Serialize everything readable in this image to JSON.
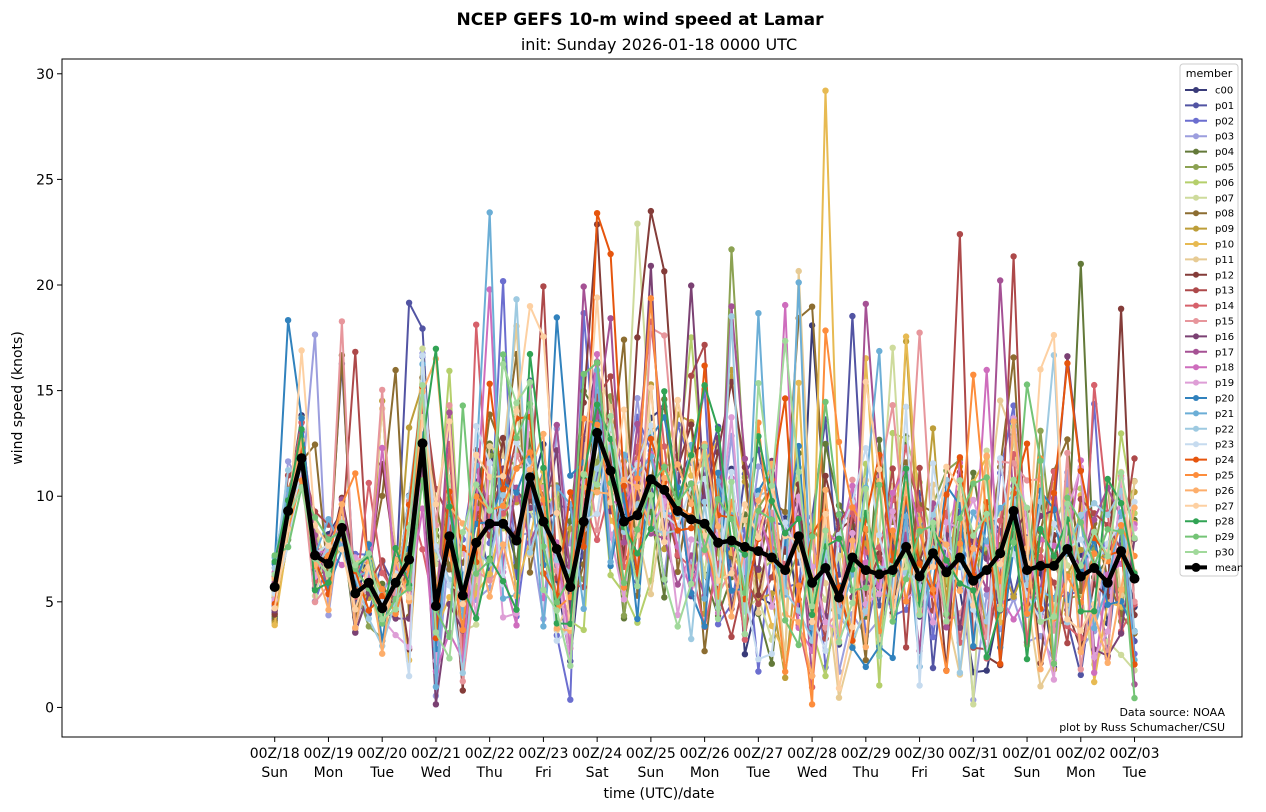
{
  "chart_data": {
    "type": "line",
    "title": "NCEP GEFS 10-m wind speed at Lamar",
    "subtitle": "init: Sunday 2026-01-18 0000 UTC",
    "xlabel": "time (UTC)/date",
    "ylabel": "wind speed (knots)",
    "ylim": [
      -1.4,
      30.7
    ],
    "xlim_hours": [
      -95,
      432
    ],
    "y_ticks": [
      "0",
      "5",
      "10",
      "15",
      "20",
      "25",
      "30"
    ],
    "x_ticks": [
      {
        "line1": "00Z/18",
        "line2": "Sun"
      },
      {
        "line1": "00Z/19",
        "line2": "Mon"
      },
      {
        "line1": "00Z/20",
        "line2": "Tue"
      },
      {
        "line1": "00Z/21",
        "line2": "Wed"
      },
      {
        "line1": "00Z/22",
        "line2": "Thu"
      },
      {
        "line1": "00Z/23",
        "line2": "Fri"
      },
      {
        "line1": "00Z/24",
        "line2": "Sat"
      },
      {
        "line1": "00Z/25",
        "line2": "Sun"
      },
      {
        "line1": "00Z/26",
        "line2": "Mon"
      },
      {
        "line1": "00Z/27",
        "line2": "Tue"
      },
      {
        "line1": "00Z/28",
        "line2": "Wed"
      },
      {
        "line1": "00Z/29",
        "line2": "Thu"
      },
      {
        "line1": "00Z/30",
        "line2": "Fri"
      },
      {
        "line1": "00Z/31",
        "line2": "Sat"
      },
      {
        "line1": "00Z/01",
        "line2": "Sun"
      },
      {
        "line1": "00Z/02",
        "line2": "Mon"
      },
      {
        "line1": "00Z/03",
        "line2": "Tue"
      }
    ],
    "legend_title": "member",
    "legend_position": "upper-right",
    "time_step_hours": 6,
    "member_series": [
      {
        "name": "c00",
        "color": "#393b79",
        "start": 4.5
      },
      {
        "name": "p01",
        "color": "#5254a3",
        "start": 4.2
      },
      {
        "name": "p02",
        "color": "#6b6ecf",
        "start": 4.8
      },
      {
        "name": "p03",
        "color": "#9c9ede",
        "start": 5.0
      },
      {
        "name": "p04",
        "color": "#637939",
        "start": 4.3
      },
      {
        "name": "p05",
        "color": "#8ca252",
        "start": 5.2
      },
      {
        "name": "p06",
        "color": "#b5cf6b",
        "start": 5.5
      },
      {
        "name": "p07",
        "color": "#cedb9c",
        "start": 6.0
      },
      {
        "name": "p08",
        "color": "#8c6d31",
        "start": 4.1
      },
      {
        "name": "p09",
        "color": "#bd9e39",
        "start": 4.0
      },
      {
        "name": "p10",
        "color": "#e7ba52",
        "start": 3.9
      },
      {
        "name": "p11",
        "color": "#e7cb94",
        "start": 5.3
      },
      {
        "name": "p12",
        "color": "#843c39",
        "start": 4.4
      },
      {
        "name": "p13",
        "color": "#ad494a",
        "start": 5.6
      },
      {
        "name": "p14",
        "color": "#d6616b",
        "start": 6.2
      },
      {
        "name": "p15",
        "color": "#e7969c",
        "start": 5.7
      },
      {
        "name": "p16",
        "color": "#7b4173",
        "start": 4.6
      },
      {
        "name": "p17",
        "color": "#a55194",
        "start": 5.9
      },
      {
        "name": "p18",
        "color": "#ce6dbd",
        "start": 6.4
      },
      {
        "name": "p19",
        "color": "#de9ed6",
        "start": 5.1
      },
      {
        "name": "p20",
        "color": "#3182bd",
        "start": 6.8
      },
      {
        "name": "p21",
        "color": "#6baed6",
        "start": 7.1
      },
      {
        "name": "p22",
        "color": "#9ecae1",
        "start": 6.6
      },
      {
        "name": "p23",
        "color": "#c6dbef",
        "start": 5.4
      },
      {
        "name": "p24",
        "color": "#e6550d",
        "start": 4.9
      },
      {
        "name": "p25",
        "color": "#fd8d3c",
        "start": 5.8
      },
      {
        "name": "p26",
        "color": "#fdae6b",
        "start": 6.1
      },
      {
        "name": "p27",
        "color": "#fdd0a2",
        "start": 4.7
      },
      {
        "name": "p28",
        "color": "#31a354",
        "start": 6.9
      },
      {
        "name": "p29",
        "color": "#74c476",
        "start": 7.2
      },
      {
        "name": "p30",
        "color": "#a1d99b",
        "start": 6.3
      }
    ],
    "mean": {
      "name": "mean",
      "color": "#000000",
      "values": [
        5.7,
        9.3,
        11.8,
        7.2,
        6.8,
        8.5,
        5.4,
        5.9,
        4.7,
        5.9,
        7.0,
        12.5,
        4.8,
        8.1,
        5.3,
        7.8,
        8.7,
        8.7,
        7.9,
        10.9,
        8.8,
        7.5,
        5.7,
        8.8,
        13.0,
        11.2,
        8.8,
        9.1,
        10.8,
        10.3,
        9.3,
        8.9,
        8.7,
        7.8,
        7.9,
        7.6,
        7.4,
        7.1,
        6.5,
        8.1,
        5.9,
        6.6,
        5.2,
        7.1,
        6.5,
        6.3,
        6.5,
        7.6,
        6.2,
        7.3,
        6.4,
        7.1,
        6.0,
        6.5,
        7.3,
        9.3,
        6.5,
        6.7,
        6.7,
        7.5,
        6.2,
        6.6,
        5.9,
        7.4,
        6.1
      ]
    }
  },
  "notes": {
    "source": "Data source: NOAA",
    "credit": "plot by Russ Schumacher/CSU"
  }
}
